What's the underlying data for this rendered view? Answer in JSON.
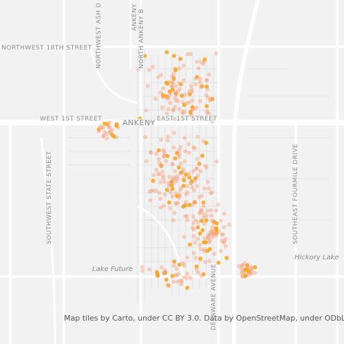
{
  "map": {
    "labels": {
      "nw18": "NORTHWEST 18TH STREET",
      "nwash": "NORTHWEST ASH D",
      "nankeny": "NORTH ANKENY B",
      "ankenyTop": "ANKENY",
      "w1st": "WEST 1ST STREET",
      "ankeny": "ANKENY",
      "e1st": "EAST 1ST STREET",
      "swstate": "SOUTHWEST STATE STREET",
      "sefourmile": "SOUTHEAST FOURMILE DRIVE",
      "delaware": "DELAWARE AVENUE",
      "lakeFuture": "Lake Future",
      "hickory": "Hickory Lake"
    },
    "attribution": "Map tiles by Carto, under CC BY 3.0. Data by OpenStreetMap, under ODbL."
  }
}
